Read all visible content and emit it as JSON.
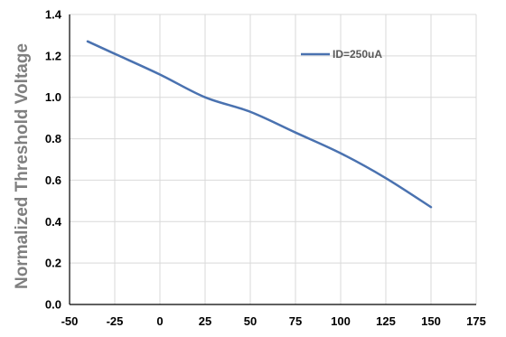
{
  "chart_data": {
    "type": "line",
    "title": "",
    "xlabel": "",
    "ylabel": "Normalized Threshold Voltage",
    "xlim": [
      -50,
      175
    ],
    "ylim": [
      0.0,
      1.4
    ],
    "x_ticks": [
      -50,
      -25,
      0,
      25,
      50,
      75,
      100,
      125,
      150,
      175
    ],
    "x_tick_labels": [
      "-50",
      "-25",
      "0",
      "25",
      "50",
      "75",
      "100",
      "125",
      "150",
      "175"
    ],
    "y_ticks": [
      0.0,
      0.2,
      0.4,
      0.6,
      0.8,
      1.0,
      1.2,
      1.4
    ],
    "y_tick_labels": [
      "0.0",
      "0.2",
      "0.4",
      "0.6",
      "0.8",
      "1.0",
      "1.2",
      "1.4"
    ],
    "grid": true,
    "legend_position": "top-right",
    "series": [
      {
        "name": "ID=250uA",
        "color": "#4a72b0",
        "x": [
          -40,
          -25,
          0,
          25,
          50,
          75,
          100,
          125,
          150
        ],
        "y": [
          1.27,
          1.21,
          1.11,
          1.0,
          0.93,
          0.83,
          0.73,
          0.61,
          0.47
        ]
      }
    ],
    "colors": {
      "axis": "#000000",
      "grid": "#d9d9d9",
      "ylabel": "#7f7f7f"
    }
  }
}
